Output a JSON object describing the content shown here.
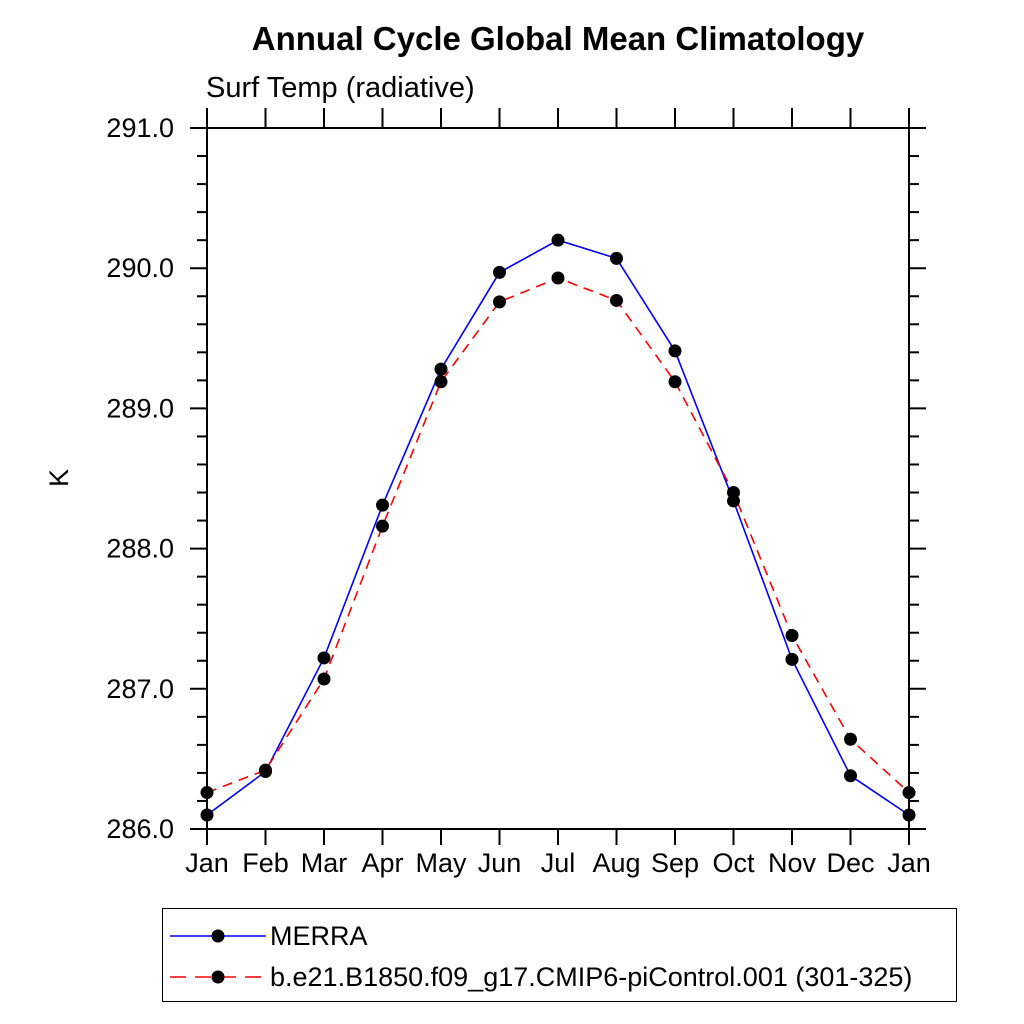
{
  "chart_data": {
    "type": "line",
    "title": "Annual Cycle Global Mean Climatology",
    "subtitle": "Surf Temp (radiative)",
    "ylabel": "K",
    "xlabel": "",
    "categories": [
      "Jan",
      "Feb",
      "Mar",
      "Apr",
      "May",
      "Jun",
      "Jul",
      "Aug",
      "Sep",
      "Oct",
      "Nov",
      "Dec",
      "Jan"
    ],
    "ylim": [
      286.0,
      291.0
    ],
    "ytick_major_step": 1.0,
    "ytick_minor_step": 0.2,
    "ytick_labels": [
      "286.0",
      "287.0",
      "288.0",
      "289.0",
      "290.0",
      "291.0"
    ],
    "grid": false,
    "legend_position": "bottom-left-box",
    "frame_color": "#000000",
    "marker": "filled-circle",
    "marker_color": "#000000",
    "series": [
      {
        "name": "MERRA",
        "color": "#0000ff",
        "style": "solid",
        "values": [
          286.1,
          286.41,
          287.22,
          288.31,
          289.28,
          289.97,
          290.2,
          290.07,
          289.41,
          288.34,
          287.21,
          286.38,
          286.1
        ]
      },
      {
        "name": "b.e21.B1850.f09_g17.CMIP6-piControl.001 (301-325)",
        "color": "#ff0000",
        "style": "dashed",
        "values": [
          286.26,
          286.42,
          287.07,
          288.16,
          289.19,
          289.76,
          289.93,
          289.77,
          289.19,
          288.4,
          287.38,
          286.64,
          286.26
        ]
      }
    ]
  }
}
